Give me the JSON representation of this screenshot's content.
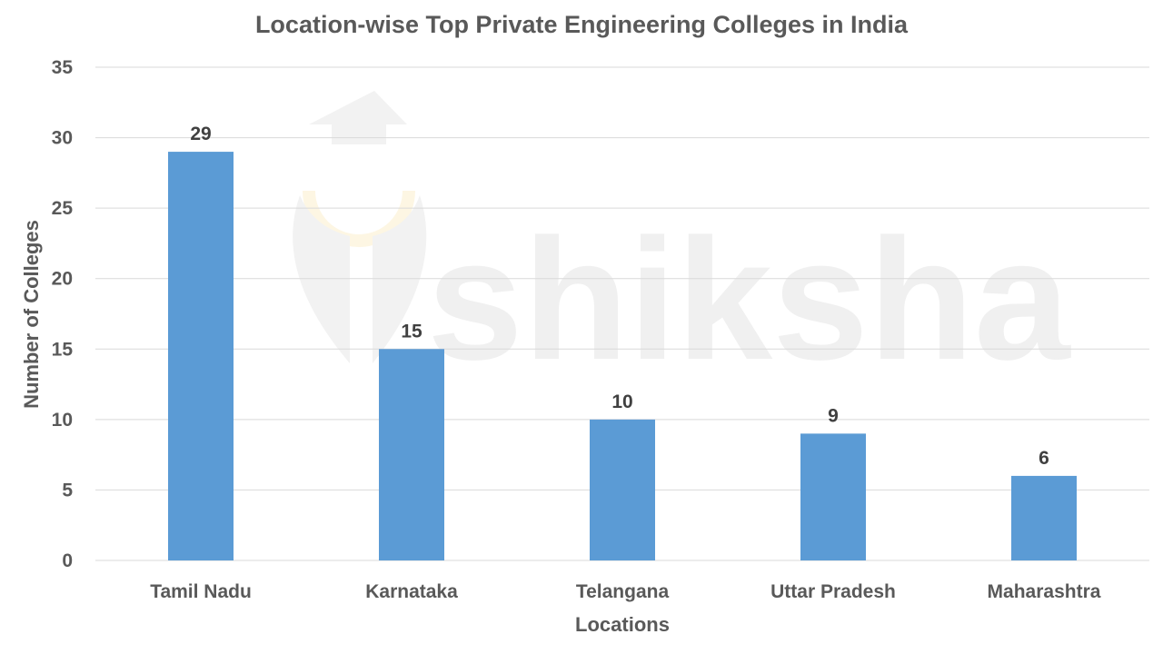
{
  "chart_data": {
    "type": "bar",
    "title": "Location-wise Top Private Engineering Colleges in India",
    "xlabel": "Locations",
    "ylabel": "Number of Colleges",
    "categories": [
      "Tamil Nadu",
      "Karnataka",
      "Telangana",
      "Uttar Pradesh",
      "Maharashtra"
    ],
    "values": [
      29,
      15,
      10,
      9,
      6
    ],
    "ylim": [
      0,
      35
    ],
    "yticks": [
      0,
      5,
      10,
      15,
      20,
      25,
      30,
      35
    ],
    "grid": true,
    "data_labels": true,
    "bar_color": "#5b9bd5"
  },
  "watermark": "shiksha"
}
